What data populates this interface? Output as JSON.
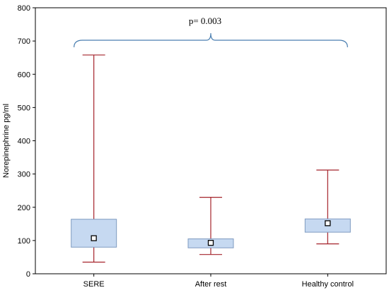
{
  "chart_data": {
    "type": "boxplot",
    "ylabel": "Norepinephrine pg/ml",
    "xlabel": "",
    "ylim": [
      0,
      800
    ],
    "yticks": [
      0,
      100,
      200,
      300,
      400,
      500,
      600,
      700,
      800
    ],
    "grid": false,
    "categories": [
      "SERE",
      "After rest",
      "Healthy control"
    ],
    "boxes": [
      {
        "category": "SERE",
        "whisker_low": 35,
        "q1": 80,
        "median": 107,
        "q3": 164,
        "whisker_high": 658
      },
      {
        "category": "After rest",
        "whisker_low": 58,
        "q1": 78,
        "median": 93,
        "q3": 105,
        "whisker_high": 230
      },
      {
        "category": "Healthy control",
        "whisker_low": 90,
        "q1": 125,
        "median": 152,
        "q3": 165,
        "whisker_high": 312
      }
    ],
    "annotation": {
      "text": "p= 0.003",
      "spans": [
        "SERE",
        "Healthy control"
      ]
    },
    "colors": {
      "box_fill": "#c6d9f1",
      "box_stroke": "#7f9bc1",
      "whisker": "#a5232b",
      "bracket": "#4a7eb0"
    }
  }
}
